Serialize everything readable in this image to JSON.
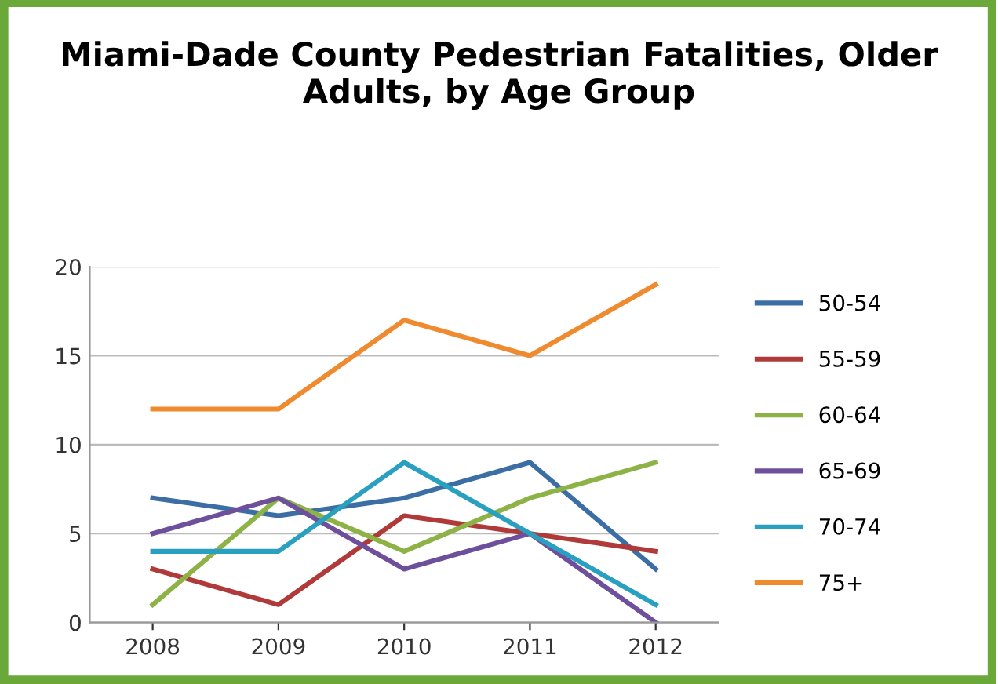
{
  "chart_data": {
    "type": "line",
    "title": "Miami-Dade County Pedestrian Fatalities, Older Adults, by Age Group",
    "categories": [
      "2008",
      "2009",
      "2010",
      "2011",
      "2012"
    ],
    "series": [
      {
        "name": "50-54",
        "color": "#3c6ea6",
        "values": [
          7,
          6,
          7,
          9,
          3
        ]
      },
      {
        "name": "55-59",
        "color": "#b03a3a",
        "values": [
          3,
          1,
          6,
          5,
          4
        ]
      },
      {
        "name": "60-64",
        "color": "#8db347",
        "values": [
          1,
          7,
          4,
          7,
          9
        ]
      },
      {
        "name": "65-69",
        "color": "#6e4f9c",
        "values": [
          5,
          7,
          3,
          5,
          0
        ]
      },
      {
        "name": "70-74",
        "color": "#2aa0c0",
        "values": [
          4,
          4,
          9,
          5,
          1
        ]
      },
      {
        "name": "75+",
        "color": "#ef8a2e",
        "values": [
          12,
          12,
          17,
          15,
          19
        ]
      }
    ],
    "ylim": [
      0,
      20
    ],
    "yticks": [
      0,
      5,
      10,
      15,
      20
    ],
    "grid": "y",
    "legend": "right",
    "marker": "none",
    "line_style": "solid"
  }
}
